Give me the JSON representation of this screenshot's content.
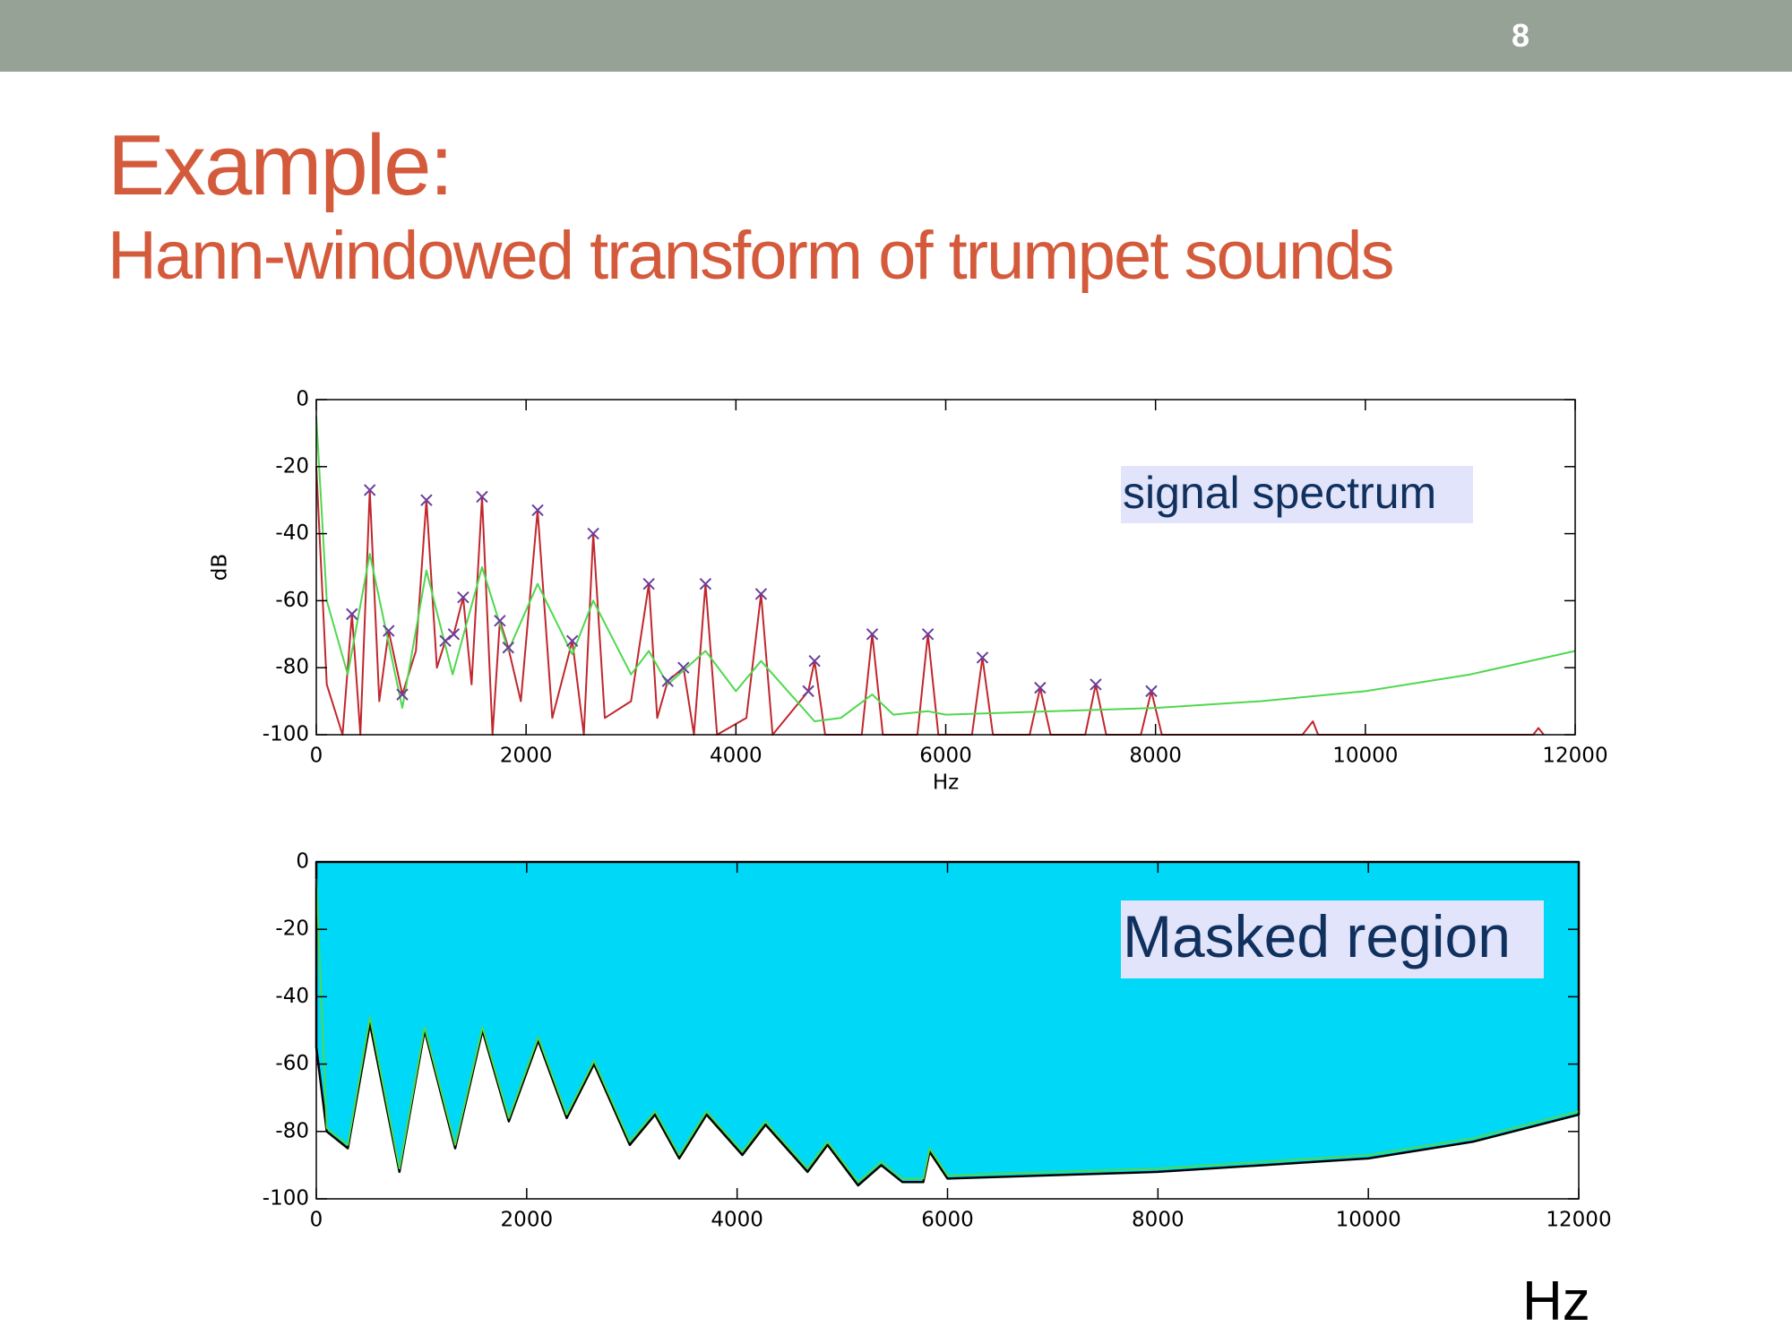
{
  "slide": {
    "page_number": 8,
    "title": "Example:",
    "subtitle": "Hann-windowed transform of trumpet sounds",
    "footer_label": "Hz"
  },
  "chart_data": [
    {
      "type": "line",
      "xlabel": "Hz",
      "ylabel": "dB",
      "annotation": "signal spectrum",
      "xlim": [
        0,
        12000
      ],
      "ylim": [
        -100,
        0
      ],
      "xticks": [
        0,
        2000,
        4000,
        6000,
        8000,
        10000,
        12000
      ],
      "yticks": [
        0,
        -20,
        -40,
        -60,
        -80,
        -100
      ],
      "grid": false,
      "series": [
        {
          "color": "#c0272d",
          "x": [
            0,
            100,
            250,
            340,
            420,
            510,
            600,
            690,
            820,
            950,
            1050,
            1150,
            1230,
            1310,
            1400,
            1480,
            1580,
            1680,
            1750,
            1830,
            1950,
            2110,
            2250,
            2440,
            2550,
            2640,
            2750,
            3000,
            3170,
            3250,
            3350,
            3500,
            3600,
            3710,
            3820,
            4100,
            4240,
            4350,
            4690,
            4750,
            4850,
            5200,
            5300,
            5400,
            5730,
            5830,
            5930,
            6250,
            6350,
            6450,
            6800,
            6900,
            7000,
            7330,
            7430,
            7530,
            7860,
            7960,
            8060,
            9400,
            9500,
            9550,
            11600,
            11650,
            11700
          ],
          "values": [
            -20,
            -85,
            -100,
            -64,
            -100,
            -27,
            -90,
            -69,
            -88,
            -75,
            -30,
            -80,
            -72,
            -70,
            -59,
            -85,
            -29,
            -100,
            -66,
            -74,
            -90,
            -33,
            -95,
            -72,
            -100,
            -40,
            -95,
            -90,
            -55,
            -95,
            -84,
            -80,
            -100,
            -55,
            -100,
            -95,
            -58,
            -100,
            -87,
            -78,
            -100,
            -100,
            -70,
            -100,
            -100,
            -70,
            -100,
            -100,
            -77,
            -100,
            -100,
            -86,
            -100,
            -100,
            -85,
            -100,
            -100,
            -87,
            -100,
            -100,
            -96,
            -100,
            -100,
            -98,
            -100
          ]
        },
        {
          "color": "#4fd84f",
          "x": [
            0,
            100,
            300,
            510,
            820,
            1050,
            1300,
            1580,
            1830,
            2110,
            2440,
            2640,
            3000,
            3170,
            3350,
            3710,
            4000,
            4240,
            4750,
            5000,
            5300,
            5500,
            5830,
            6000,
            8000,
            9000,
            10000,
            11000,
            12000
          ],
          "values": [
            -5,
            -60,
            -82,
            -46,
            -92,
            -51,
            -82,
            -50,
            -75,
            -55,
            -76,
            -60,
            -82,
            -75,
            -85,
            -75,
            -87,
            -78,
            -96,
            -95,
            -88,
            -94,
            -93,
            -94,
            -92,
            -90,
            -87,
            -82,
            -75
          ]
        },
        {
          "color": "#6a3d9a",
          "marker": "x",
          "x": [
            340,
            510,
            690,
            820,
            1050,
            1230,
            1310,
            1400,
            1580,
            1750,
            1830,
            2110,
            2440,
            2640,
            3170,
            3350,
            3500,
            3710,
            4240,
            4690,
            4750,
            5300,
            5830,
            6350,
            6900,
            7430,
            7960
          ],
          "values": [
            -64,
            -27,
            -69,
            -88,
            -30,
            -72,
            -70,
            -59,
            -29,
            -66,
            -74,
            -33,
            -72,
            -40,
            -55,
            -84,
            -80,
            -55,
            -58,
            -87,
            -78,
            -70,
            -70,
            -77,
            -86,
            -85,
            -87
          ]
        }
      ]
    },
    {
      "type": "area",
      "annotation": "Masked region",
      "xlim": [
        0,
        12000
      ],
      "ylim": [
        -100,
        0
      ],
      "xticks": [
        0,
        2000,
        4000,
        6000,
        8000,
        10000,
        12000
      ],
      "yticks": [
        0,
        -20,
        -40,
        -60,
        -80,
        -100
      ],
      "grid": false,
      "series": [
        {
          "color": "#00d8f8",
          "x": [
            0,
            100,
            300,
            510,
            790,
            1030,
            1320,
            1580,
            1830,
            2110,
            2380,
            2640,
            2980,
            3220,
            3450,
            3710,
            4050,
            4270,
            4670,
            4860,
            5150,
            5370,
            5570,
            5770,
            5830,
            6000,
            8000,
            10000,
            11000,
            12000
          ],
          "values": [
            -55,
            -80,
            -85,
            -48,
            -92,
            -50,
            -85,
            -50,
            -77,
            -53,
            -76,
            -60,
            -84,
            -75,
            -88,
            -75,
            -87,
            -78,
            -92,
            -84,
            -96,
            -90,
            -95,
            -95,
            -86,
            -94,
            -92,
            -88,
            -83,
            -75
          ]
        },
        {
          "color": "#4fd84f",
          "x": [
            0,
            100,
            300,
            510,
            790,
            1030,
            1320,
            1580,
            1830,
            2110,
            2380,
            2640,
            2980,
            3220,
            3450,
            3710,
            4050,
            4270,
            4670,
            4860,
            5150,
            5370,
            5570,
            5770,
            5830,
            6000,
            8000,
            10000,
            11000,
            12000
          ],
          "values": [
            -5,
            -79,
            -84,
            -46,
            -91,
            -49,
            -84,
            -49,
            -76,
            -52,
            -75,
            -59,
            -83,
            -74,
            -87,
            -74,
            -86,
            -77,
            -91,
            -83,
            -95,
            -89,
            -94,
            -94,
            -85,
            -93,
            -91,
            -87,
            -82,
            -74
          ]
        }
      ]
    }
  ]
}
